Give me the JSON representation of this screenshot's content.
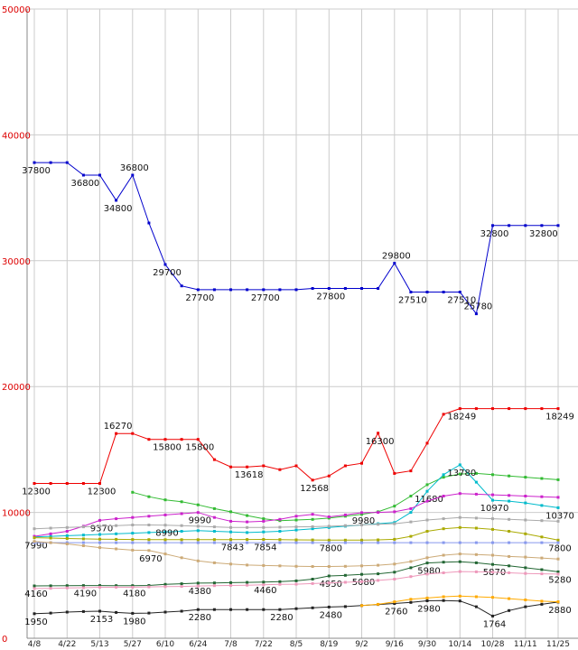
{
  "chart_data": {
    "type": "line",
    "title": "",
    "xlabel": "",
    "ylabel": "",
    "ylim": [
      0,
      50000
    ],
    "grid": true,
    "legend": "none",
    "grid_color": "#cccccc",
    "axis_color": "#888888",
    "y_tick_color": "#dd0000",
    "x_tick_color": "#222222",
    "value_label_color": "#111111",
    "y_ticks": [
      0,
      10000,
      20000,
      30000,
      40000,
      50000
    ],
    "x_tick_labels": [
      "4/8",
      "4/22",
      "5/13",
      "5/27",
      "6/10",
      "6/24",
      "7/8",
      "7/22",
      "8/5",
      "8/19",
      "9/2",
      "9/16",
      "9/30",
      "10/14",
      "10/28",
      "11/11",
      "11/25"
    ],
    "series": [
      {
        "name": "blue",
        "color": "#0000cc",
        "values": [
          37800,
          37800,
          37800,
          36800,
          36800,
          34800,
          36800,
          33000,
          29700,
          28000,
          27700,
          27700,
          27700,
          27700,
          27700,
          27700,
          27700,
          27800,
          27800,
          27800,
          27800,
          27800,
          29800,
          27510,
          27510,
          27510,
          27510,
          25780,
          32800,
          32800,
          32800,
          32800,
          32800
        ],
        "labels": [
          {
            "i": 0,
            "t": "37800",
            "dy": 12
          },
          {
            "i": 3,
            "t": "36800",
            "dy": 12
          },
          {
            "i": 5,
            "t": "34800",
            "dy": 12
          },
          {
            "i": 6,
            "t": "36800",
            "dy": -5
          },
          {
            "i": 8,
            "t": "29700",
            "dy": 12
          },
          {
            "i": 10,
            "t": "27700",
            "dy": 12
          },
          {
            "i": 14,
            "t": "27700",
            "dy": 12
          },
          {
            "i": 18,
            "t": "27800",
            "dy": 12
          },
          {
            "i": 22,
            "t": "29800",
            "dy": -5
          },
          {
            "i": 23,
            "t": "27510",
            "dy": 12
          },
          {
            "i": 26,
            "t": "27510",
            "dy": 12
          },
          {
            "i": 27,
            "t": "25780",
            "dy": -5
          },
          {
            "i": 28,
            "t": "32800",
            "dy": 12
          },
          {
            "i": 31,
            "t": "32800",
            "dy": 12
          }
        ]
      },
      {
        "name": "red",
        "color": "#ee0000",
        "values": [
          12300,
          12300,
          12300,
          12300,
          12300,
          16270,
          16270,
          15800,
          15800,
          15800,
          15800,
          14200,
          13618,
          13618,
          13700,
          13400,
          13700,
          12568,
          12900,
          13700,
          13900,
          16300,
          13100,
          13300,
          15500,
          17800,
          18249,
          18249,
          18249,
          18249,
          18249,
          18249,
          18249
        ],
        "labels": [
          {
            "i": 0,
            "t": "12300",
            "dy": 12
          },
          {
            "i": 4,
            "t": "12300",
            "dy": 12
          },
          {
            "i": 5,
            "t": "16270",
            "dy": -5
          },
          {
            "i": 8,
            "t": "15800",
            "dy": 12
          },
          {
            "i": 10,
            "t": "15800",
            "dy": 12
          },
          {
            "i": 13,
            "t": "13618",
            "dy": 12
          },
          {
            "i": 17,
            "t": "12568",
            "dy": 12
          },
          {
            "i": 21,
            "t": "16300",
            "dy": 12
          },
          {
            "i": 26,
            "t": "18249",
            "dy": 12
          },
          {
            "i": 32,
            "t": "18249",
            "dy": 12
          }
        ]
      },
      {
        "name": "green",
        "color": "#33bb33",
        "values": [
          null,
          null,
          null,
          null,
          null,
          null,
          11600,
          11250,
          11000,
          10850,
          10600,
          10300,
          10050,
          9750,
          9500,
          9350,
          9400,
          9450,
          9550,
          9700,
          9850,
          10050,
          10500,
          11300,
          12200,
          12800,
          13050,
          13100,
          13000,
          12900,
          12800,
          12700,
          12600
        ],
        "labels": []
      },
      {
        "name": "cyan",
        "color": "#00bbcc",
        "values": [
          8050,
          8100,
          8150,
          8200,
          8250,
          8300,
          8350,
          8400,
          8450,
          8500,
          8550,
          8500,
          8450,
          8400,
          8450,
          8500,
          8600,
          8700,
          8800,
          8900,
          9000,
          9100,
          9200,
          10000,
          11680,
          13000,
          13780,
          12400,
          10970,
          10900,
          10750,
          10550,
          10370
        ],
        "labels": [
          {
            "i": 24,
            "t": "11680",
            "dy": 12
          },
          {
            "i": 26,
            "t": "13780",
            "dy": 12
          },
          {
            "i": 28,
            "t": "10970",
            "dy": 12
          },
          {
            "i": 32,
            "t": "10370",
            "dy": 12
          }
        ]
      },
      {
        "name": "magenta",
        "color": "#cc22cc",
        "values": [
          8100,
          8300,
          8500,
          8900,
          9370,
          9500,
          9600,
          9700,
          9800,
          9900,
          9990,
          9600,
          9300,
          9250,
          9300,
          9450,
          9700,
          9850,
          9650,
          9800,
          9980,
          10000,
          10050,
          10300,
          10900,
          11300,
          11500,
          11450,
          11400,
          11350,
          11300,
          11250,
          11200
        ],
        "labels": [
          {
            "i": 4,
            "t": "9370",
            "dy": 12
          },
          {
            "i": 10,
            "t": "9990",
            "dy": 12
          },
          {
            "i": 20,
            "t": "9980",
            "dy": 12
          }
        ]
      },
      {
        "name": "olive",
        "color": "#aaaa00",
        "values": [
          7990,
          7960,
          7930,
          7900,
          7880,
          7860,
          7850,
          7840,
          7830,
          7830,
          7835,
          7840,
          7843,
          7848,
          7854,
          7840,
          7820,
          7810,
          7800,
          7800,
          7800,
          7820,
          7860,
          8100,
          8500,
          8700,
          8800,
          8750,
          8650,
          8500,
          8300,
          8050,
          7800
        ],
        "labels": [
          {
            "i": 0,
            "t": "7990",
            "dy": 12
          },
          {
            "i": 12,
            "t": "7843",
            "dy": 12
          },
          {
            "i": 14,
            "t": "7854",
            "dy": 12
          },
          {
            "i": 18,
            "t": "7800",
            "dy": 12
          },
          {
            "i": 32,
            "t": "7800",
            "dy": 12
          }
        ]
      },
      {
        "name": "periwinkle",
        "color": "#8899ee",
        "values": [
          7600,
          7600,
          7600,
          7600,
          7600,
          7600,
          7600,
          7600,
          7600,
          7600,
          7600,
          7600,
          7600,
          7600,
          7600,
          7600,
          7600,
          7600,
          7600,
          7600,
          7600,
          7600,
          7600,
          7600,
          7600,
          7600,
          7600,
          7600,
          7600,
          7600,
          7600,
          7600,
          7600
        ],
        "labels": []
      },
      {
        "name": "silver",
        "color": "#aaaaaa",
        "values": [
          8700,
          8750,
          8800,
          8850,
          8900,
          8950,
          9000,
          9000,
          8990,
          8950,
          8900,
          8850,
          8800,
          8800,
          8800,
          8820,
          8850,
          8870,
          8900,
          8950,
          9000,
          9050,
          9100,
          9250,
          9400,
          9500,
          9600,
          9550,
          9500,
          9450,
          9400,
          9350,
          9300
        ],
        "labels": [
          {
            "i": 8,
            "t": "8990",
            "dy": 12
          }
        ]
      },
      {
        "name": "tan",
        "color": "#ccaa77",
        "values": [
          7700,
          7600,
          7500,
          7350,
          7200,
          7100,
          7000,
          6970,
          6700,
          6400,
          6150,
          6000,
          5900,
          5820,
          5780,
          5750,
          5720,
          5700,
          5700,
          5720,
          5750,
          5800,
          5900,
          6100,
          6400,
          6600,
          6700,
          6650,
          6600,
          6500,
          6450,
          6380,
          6300
        ],
        "labels": [
          {
            "i": 7,
            "t": "6970",
            "dy": 12
          }
        ]
      },
      {
        "name": "darkgreen",
        "color": "#226633",
        "values": [
          4160,
          4170,
          4180,
          4190,
          4190,
          4185,
          4180,
          4200,
          4280,
          4330,
          4380,
          4400,
          4420,
          4440,
          4460,
          4500,
          4560,
          4700,
          4950,
          5000,
          5080,
          5120,
          5250,
          5600,
          5980,
          6050,
          6080,
          6000,
          5870,
          5750,
          5600,
          5450,
          5280
        ],
        "labels": [
          {
            "i": 0,
            "t": "4160",
            "dy": 12
          },
          {
            "i": 3,
            "t": "4190",
            "dy": 12
          },
          {
            "i": 6,
            "t": "4180",
            "dy": 12
          },
          {
            "i": 10,
            "t": "4380",
            "dy": 12
          },
          {
            "i": 14,
            "t": "4460",
            "dy": 12
          },
          {
            "i": 18,
            "t": "4950",
            "dy": 12
          },
          {
            "i": 20,
            "t": "5080",
            "dy": 12
          },
          {
            "i": 24,
            "t": "5980",
            "dy": 12
          },
          {
            "i": 28,
            "t": "5870",
            "dy": 12
          },
          {
            "i": 32,
            "t": "5280",
            "dy": 12
          }
        ]
      },
      {
        "name": "pink",
        "color": "#ee99bb",
        "values": [
          3950,
          3970,
          4000,
          4020,
          4050,
          4050,
          4050,
          4080,
          4100,
          4120,
          4150,
          4180,
          4200,
          4220,
          4250,
          4280,
          4300,
          4350,
          4400,
          4450,
          4500,
          4600,
          4700,
          4900,
          5100,
          5200,
          5300,
          5280,
          5250,
          5200,
          5150,
          5120,
          5100
        ],
        "labels": []
      },
      {
        "name": "black",
        "color": "#222222",
        "values": [
          1950,
          2000,
          2080,
          2120,
          2153,
          2050,
          1980,
          2000,
          2080,
          2150,
          2280,
          2280,
          2280,
          2280,
          2280,
          2280,
          2350,
          2420,
          2480,
          2520,
          2600,
          2680,
          2760,
          2850,
          2980,
          3000,
          2960,
          2500,
          1764,
          2200,
          2500,
          2700,
          2880
        ],
        "labels": [
          {
            "i": 0,
            "t": "1950",
            "dy": 12
          },
          {
            "i": 4,
            "t": "2153",
            "dy": 12
          },
          {
            "i": 6,
            "t": "1980",
            "dy": 12
          },
          {
            "i": 10,
            "t": "2280",
            "dy": 12
          },
          {
            "i": 15,
            "t": "2280",
            "dy": 12
          },
          {
            "i": 18,
            "t": "2480",
            "dy": 12
          },
          {
            "i": 22,
            "t": "2760",
            "dy": 12
          },
          {
            "i": 24,
            "t": "2980",
            "dy": 12
          },
          {
            "i": 28,
            "t": "1764",
            "dy": 12
          },
          {
            "i": 32,
            "t": "2880",
            "dy": 12
          }
        ]
      },
      {
        "name": "orange",
        "color": "#ffaa00",
        "values": [
          null,
          null,
          null,
          null,
          null,
          null,
          null,
          null,
          null,
          null,
          null,
          null,
          null,
          null,
          null,
          null,
          null,
          null,
          null,
          null,
          2600,
          2700,
          2900,
          3100,
          3200,
          3300,
          3350,
          3300,
          3250,
          3150,
          3050,
          2950,
          2900
        ],
        "labels": []
      }
    ]
  }
}
